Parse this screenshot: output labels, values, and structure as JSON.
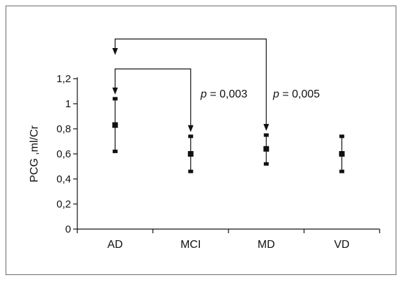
{
  "chart_data": {
    "type": "errorbar",
    "ylabel": "PCG ,ml/Cr",
    "xlabel": "",
    "ylim": [
      0,
      1.2
    ],
    "yticks": [
      "0",
      "0,2",
      "0,4",
      "0,6",
      "0,8",
      "1",
      "1,2"
    ],
    "categories": [
      "AD",
      "MCI",
      "MD",
      "VD"
    ],
    "points": [
      {
        "category": "AD",
        "mean": 0.83,
        "low": 0.62,
        "high": 1.04
      },
      {
        "category": "MCI",
        "mean": 0.6,
        "low": 0.46,
        "high": 0.74
      },
      {
        "category": "MD",
        "mean": 0.64,
        "low": 0.52,
        "high": 0.75
      },
      {
        "category": "VD",
        "mean": 0.6,
        "low": 0.46,
        "high": 0.74
      }
    ],
    "annotations": [
      {
        "from": "AD",
        "to": "MCI",
        "text_p": "p",
        "text_val": " = 0,003"
      },
      {
        "from": "AD",
        "to": "MD",
        "text_p": "p",
        "text_val": " = 0,005"
      }
    ],
    "grid": false,
    "legend": "none"
  },
  "colors": {
    "ink": "#111111",
    "frame": "#6b6b6b"
  }
}
